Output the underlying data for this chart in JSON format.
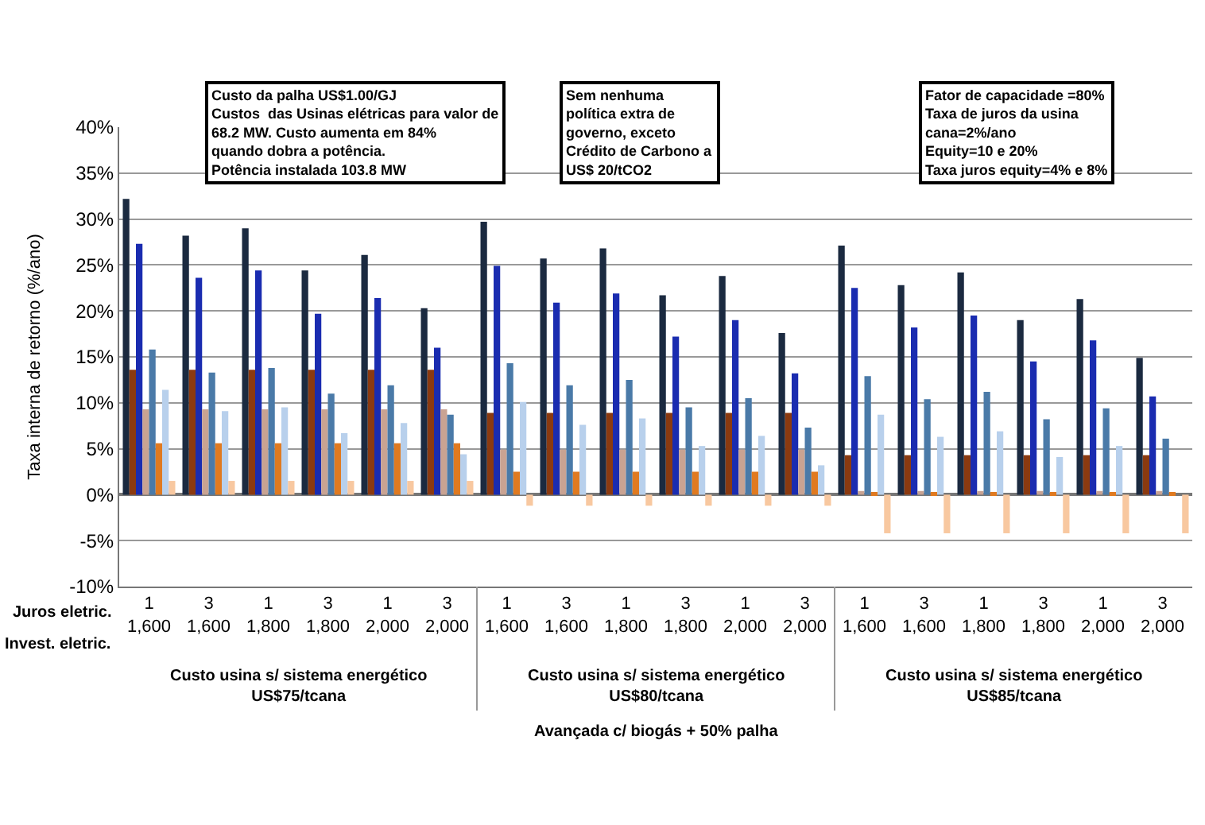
{
  "chart_data": {
    "type": "bar",
    "ylabel": "Taxa interna de retorno (%/ano)",
    "categories": [
      "1\n1,600",
      "3\n1,600",
      "1\n1,800",
      "3\n1,800",
      "1\n2,000",
      "3\n2,000",
      "1\n1,600",
      "3\n1,600",
      "1\n1,800",
      "3\n1,800",
      "1\n2,000",
      "3\n2,000",
      "1\n1,600",
      "3\n1,600",
      "1\n1,800",
      "3\n1,800",
      "1\n2,000",
      "3\n2,000"
    ],
    "series": [
      {
        "color": "#1b2a40",
        "values": [
          32.2,
          28.2,
          29.0,
          24.4,
          26.1,
          20.3,
          29.7,
          25.7,
          26.8,
          21.7,
          23.8,
          17.6,
          27.1,
          22.8,
          24.2,
          19.0,
          21.3,
          14.9
        ]
      },
      {
        "color": "#8b3a10",
        "values": [
          13.6,
          13.6,
          13.6,
          13.6,
          13.6,
          13.6,
          8.9,
          8.9,
          8.9,
          8.9,
          8.9,
          8.9,
          4.3,
          4.3,
          4.3,
          4.3,
          4.3,
          4.3
        ]
      },
      {
        "color": "#1a2cb0",
        "values": [
          27.3,
          23.6,
          24.4,
          19.7,
          21.4,
          16.0,
          24.9,
          20.9,
          21.9,
          17.2,
          19.0,
          13.2,
          22.5,
          18.2,
          19.5,
          14.5,
          16.8,
          10.7
        ]
      },
      {
        "color": "#c9a392",
        "values": [
          9.3,
          9.3,
          9.3,
          9.3,
          9.3,
          9.3,
          4.9,
          4.9,
          4.9,
          4.9,
          4.9,
          4.9,
          0.4,
          0.4,
          0.4,
          0.4,
          0.4,
          0.4
        ]
      },
      {
        "color": "#4a7aa8",
        "values": [
          15.8,
          13.3,
          13.8,
          11.0,
          11.9,
          8.7,
          14.3,
          11.9,
          12.5,
          9.5,
          10.5,
          7.3,
          12.9,
          10.4,
          11.2,
          8.2,
          9.4,
          6.1
        ]
      },
      {
        "color": "#e07a20",
        "values": [
          5.6,
          5.6,
          5.6,
          5.6,
          5.6,
          5.6,
          2.5,
          2.5,
          2.5,
          2.5,
          2.5,
          2.5,
          0.3,
          0.3,
          0.3,
          0.3,
          0.3,
          0.3
        ]
      },
      {
        "color": "#b8d0ec",
        "values": [
          11.4,
          9.1,
          9.5,
          6.7,
          7.8,
          4.4,
          10.1,
          7.6,
          8.3,
          5.3,
          6.4,
          3.2,
          8.7,
          6.3,
          6.9,
          4.1,
          5.3,
          null
        ]
      },
      {
        "color": "#f8c8a0",
        "values": [
          1.5,
          1.5,
          1.5,
          1.5,
          1.5,
          1.5,
          -1.2,
          -1.2,
          -1.2,
          -1.2,
          -1.2,
          -1.2,
          -4.2,
          -4.2,
          -4.2,
          -4.2,
          -4.2,
          -4.2
        ]
      }
    ],
    "ylim": [
      -10,
      40
    ],
    "yticks": [
      {
        "value": -10,
        "label": "-10%"
      },
      {
        "value": -5,
        "label": "-5%"
      },
      {
        "value": 0,
        "label": "0%"
      },
      {
        "value": 5,
        "label": "5%"
      },
      {
        "value": 10,
        "label": "10%"
      },
      {
        "value": 15,
        "label": "15%"
      },
      {
        "value": 20,
        "label": "20%"
      },
      {
        "value": 25,
        "label": "25%"
      },
      {
        "value": 30,
        "label": "30%"
      },
      {
        "value": 35,
        "label": "35%"
      },
      {
        "value": 40,
        "label": "40%"
      }
    ],
    "grid": "y",
    "annotations": [
      "Custo da palha US$1.00/GJ\nCustos  das Usinas elétricas para valor de\n68.2 MW. Custo aumenta em 84%\nquando dobra a potência.\nPotência instalada 103.8 MW",
      "Sem nenhuma\npolítica extra de\ngoverno, exceto\nCrédito de Carbono a\nUS$ 20/tCO2",
      "Fator de capacidade =80%\nTaxa de juros da usina\ncana=2%/ano\nEquity=10 e 20%\nTaxa juros equity=4% e 8%",
      "Juros eletric.",
      "Invest. eletric.",
      "Custo usina s/ sistema energético\nUS$75/tcana",
      "Custo usina s/ sistema energético\nUS$80/tcana",
      "Custo usina s/ sistema energético\nUS$85/tcana",
      "Avançada c/ biogás + 50% palha"
    ]
  }
}
